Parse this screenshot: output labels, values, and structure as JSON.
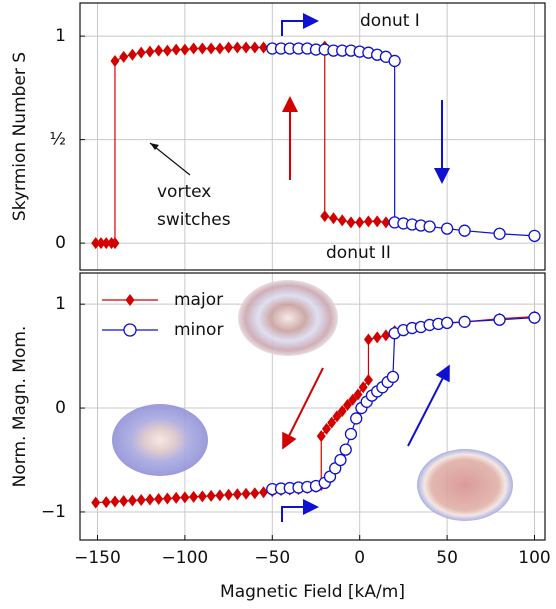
{
  "chart_data": [
    {
      "type": "line",
      "ylabel": "Skyrmion Number S",
      "xlim": [
        -160,
        106
      ],
      "ylim": [
        -0.13,
        1.16
      ],
      "yticks": [
        0,
        {
          "value": 0.5,
          "label": "½"
        },
        1
      ],
      "grid": true,
      "annotations": [
        "donut I",
        "donut II",
        "vortex",
        "switches"
      ],
      "series": [
        {
          "name": "major",
          "color": "#d40000",
          "marker": "diamond",
          "x": [
            -151,
            -148,
            -145,
            -142,
            -140,
            -140,
            -135,
            -130,
            -125,
            -120,
            -115,
            -110,
            -105,
            -100,
            -95,
            -90,
            -85,
            -80,
            -75,
            -70,
            -65,
            -60,
            -55,
            -20,
            -20,
            -15,
            -10,
            -5,
            0,
            5,
            10,
            15,
            20
          ],
          "values": [
            0,
            0,
            0,
            0,
            0,
            0.88,
            0.9,
            0.91,
            0.92,
            0.925,
            0.93,
            0.93,
            0.935,
            0.935,
            0.94,
            0.94,
            0.94,
            0.94,
            0.945,
            0.945,
            0.945,
            0.945,
            0.945,
            0.95,
            0.13,
            0.12,
            0.11,
            0.1,
            0.1,
            0.105,
            0.105,
            0.1,
            0.1
          ]
        },
        {
          "name": "minor",
          "color": "#1010d0",
          "marker": "circle",
          "x": [
            -50,
            -45,
            -40,
            -35,
            -30,
            -25,
            -20,
            -15,
            -10,
            -5,
            0,
            5,
            10,
            15,
            20,
            20,
            25,
            30,
            35,
            40,
            50,
            60,
            80,
            100
          ],
          "values": [
            0.94,
            0.94,
            0.94,
            0.94,
            0.94,
            0.935,
            0.935,
            0.93,
            0.93,
            0.93,
            0.925,
            0.92,
            0.91,
            0.9,
            0.88,
            0.1,
            0.095,
            0.09,
            0.085,
            0.08,
            0.07,
            0.06,
            0.045,
            0.035
          ]
        }
      ]
    },
    {
      "type": "line",
      "xlabel": "Magnetic Field [kA/m]",
      "ylabel": "Norm. Magn. Mom.",
      "xlim": [
        -160,
        106
      ],
      "ylim": [
        -1.27,
        1.3
      ],
      "xticks": [
        {
          "value": -150,
          "label": "−150"
        },
        {
          "value": -100,
          "label": "−100"
        },
        {
          "value": -50,
          "label": "−50"
        },
        0,
        50,
        100
      ],
      "yticks": [
        {
          "value": -1,
          "label": "−1"
        },
        0,
        1
      ],
      "grid": true,
      "legend": "upper left",
      "series": [
        {
          "name": "major",
          "color": "#d40000",
          "marker": "diamond",
          "x": [
            -151,
            -145,
            -140,
            -135,
            -130,
            -125,
            -120,
            -115,
            -110,
            -105,
            -100,
            -95,
            -90,
            -85,
            -80,
            -75,
            -70,
            -65,
            -60,
            -55,
            -50,
            -45,
            -40,
            -35,
            -30,
            -25,
            -22,
            -22,
            -19,
            -16,
            -13,
            -10,
            -7,
            -4,
            -1,
            2,
            5,
            5,
            10,
            15,
            20,
            20,
            40,
            60,
            80,
            100
          ],
          "values": [
            -0.91,
            -0.905,
            -0.9,
            -0.895,
            -0.89,
            -0.885,
            -0.88,
            -0.875,
            -0.87,
            -0.865,
            -0.86,
            -0.855,
            -0.85,
            -0.845,
            -0.84,
            -0.835,
            -0.83,
            -0.825,
            -0.82,
            -0.81,
            -0.8,
            -0.79,
            -0.785,
            -0.78,
            -0.77,
            -0.76,
            -0.74,
            -0.27,
            -0.2,
            -0.14,
            -0.08,
            -0.03,
            0.03,
            0.08,
            0.13,
            0.2,
            0.27,
            0.66,
            0.68,
            0.7,
            0.72,
            0.74,
            0.8,
            0.83,
            0.86,
            0.88
          ]
        },
        {
          "name": "minor",
          "color": "#1010d0",
          "marker": "circle",
          "x": [
            -50,
            -45,
            -40,
            -35,
            -30,
            -25,
            -20,
            -17,
            -14,
            -11,
            -8,
            -5,
            -2,
            1,
            4,
            7,
            10,
            13,
            16,
            19,
            20,
            25,
            30,
            35,
            40,
            45,
            50,
            60,
            80,
            100
          ],
          "values": [
            -0.78,
            -0.775,
            -0.77,
            -0.765,
            -0.76,
            -0.75,
            -0.72,
            -0.66,
            -0.58,
            -0.5,
            -0.4,
            -0.25,
            -0.1,
            0.0,
            0.06,
            0.12,
            0.16,
            0.2,
            0.25,
            0.3,
            0.72,
            0.75,
            0.77,
            0.78,
            0.8,
            0.81,
            0.82,
            0.83,
            0.85,
            0.87
          ]
        }
      ]
    }
  ]
}
